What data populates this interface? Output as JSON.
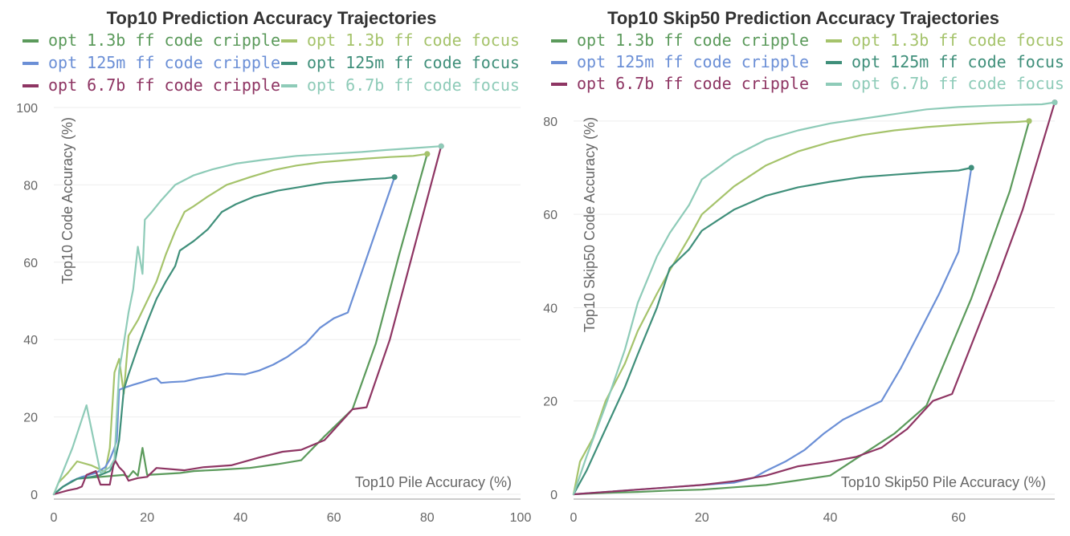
{
  "colors": {
    "opt_1_3b_cripple": "#5b9a5b",
    "opt_1_3b_focus": "#a5c36b",
    "opt_125m_cripple": "#6b8fd6",
    "opt_125m_focus": "#3f8f7a",
    "opt_6_7b_cripple": "#8e3563",
    "opt_6_7b_focus": "#8ecbb8"
  },
  "legend": [
    {
      "name": "opt 1.3b ff code cripple",
      "color_key": "opt_1_3b_cripple"
    },
    {
      "name": "opt 1.3b ff code focus",
      "color_key": "opt_1_3b_focus"
    },
    {
      "name": "opt 125m ff code cripple",
      "color_key": "opt_125m_cripple"
    },
    {
      "name": "opt 125m ff code focus",
      "color_key": "opt_125m_focus"
    },
    {
      "name": "opt 6.7b ff code cripple",
      "color_key": "opt_6_7b_cripple"
    },
    {
      "name": "opt 6.7b ff code focus",
      "color_key": "opt_6_7b_focus"
    }
  ],
  "chart_data": [
    {
      "type": "line",
      "title": "Top10 Prediction Accuracy Trajectories",
      "xlabel": "Top10 Pile Accuracy (%)",
      "ylabel": "Top10 Code Accuracy (%)",
      "xlim": [
        0,
        100
      ],
      "ylim": [
        0,
        100
      ],
      "xticks": [
        0,
        20,
        40,
        60,
        80,
        100
      ],
      "yticks": [
        0,
        20,
        40,
        60,
        80,
        100
      ],
      "grid": true,
      "series": [
        {
          "name": "opt 1.3b ff code cripple",
          "color_key": "opt_1_3b_cripple",
          "x": [
            0,
            2,
            5,
            10,
            15,
            16,
            17,
            18,
            19,
            20,
            23,
            27,
            30,
            35,
            42,
            48,
            53,
            58,
            64,
            69,
            74,
            80
          ],
          "y": [
            0,
            2,
            4,
            4.5,
            5,
            4.5,
            6,
            4.8,
            12,
            5,
            5.2,
            5.5,
            6,
            6.3,
            6.8,
            7.8,
            8.8,
            15,
            22,
            39,
            62,
            88
          ]
        },
        {
          "name": "opt 1.3b ff code focus",
          "color_key": "opt_1_3b_focus",
          "x": [
            0,
            1,
            3,
            5,
            8,
            11,
            12,
            13,
            14,
            15,
            16,
            18,
            20,
            22,
            24,
            26,
            28,
            30,
            33,
            37,
            42,
            47,
            52,
            57,
            62,
            67,
            72,
            77,
            80
          ],
          "y": [
            0,
            3,
            5.5,
            8.5,
            7.5,
            5.8,
            12,
            31.5,
            35,
            26,
            41,
            45,
            50,
            55,
            62,
            68,
            73,
            74.5,
            77,
            80,
            82,
            83.8,
            85,
            85.8,
            86.3,
            86.8,
            87.2,
            87.5,
            88
          ]
        },
        {
          "name": "opt 125m ff code cripple",
          "color_key": "opt_125m_cripple",
          "x": [
            0,
            2,
            4,
            6,
            9,
            11,
            12,
            13,
            13.5,
            14,
            15,
            17,
            19,
            21,
            22,
            23,
            25,
            28,
            31,
            34,
            37,
            41,
            44,
            47,
            50,
            54,
            57,
            60,
            63,
            73
          ],
          "y": [
            0,
            2,
            3.5,
            4.5,
            5.5,
            7,
            9,
            12,
            14,
            27,
            27.5,
            28.3,
            29,
            29.8,
            30,
            28.8,
            29,
            29.2,
            30,
            30.5,
            31.2,
            31,
            32,
            33.5,
            35.5,
            39,
            43,
            45.5,
            47,
            82
          ]
        },
        {
          "name": "opt 125m ff code focus",
          "color_key": "opt_125m_focus",
          "x": [
            0,
            2,
            5,
            8,
            10,
            12,
            13,
            14,
            15,
            16,
            18,
            20,
            22,
            24,
            26,
            27,
            30,
            33,
            36,
            39,
            43,
            48,
            53,
            58,
            63,
            68,
            71,
            73
          ],
          "y": [
            0,
            2,
            4,
            4.5,
            5,
            6,
            8,
            14,
            27,
            31,
            38,
            44.5,
            50.5,
            55,
            59,
            63,
            65.5,
            68.5,
            73,
            75,
            77,
            78.5,
            79.5,
            80.5,
            81,
            81.5,
            81.7,
            82
          ]
        },
        {
          "name": "opt 6.7b ff code cripple",
          "color_key": "opt_6_7b_cripple",
          "x": [
            0,
            3,
            5,
            6,
            7,
            9,
            10,
            12,
            13,
            14,
            15,
            16,
            18,
            20,
            22,
            28,
            32,
            38,
            44,
            49,
            53,
            58,
            64,
            67,
            72,
            83
          ],
          "y": [
            0,
            1,
            1.5,
            2,
            5,
            6,
            2.5,
            2.5,
            9,
            7,
            5.8,
            3.5,
            4.2,
            4.5,
            6.8,
            6.2,
            7,
            7.5,
            9.5,
            11,
            11.5,
            14,
            22,
            22.5,
            40,
            90
          ]
        },
        {
          "name": "opt 6.7b ff code focus",
          "color_key": "opt_6_7b_focus",
          "x": [
            0,
            4,
            7,
            10,
            12,
            13,
            14,
            15,
            16,
            17,
            18,
            19,
            19.5,
            21,
            23,
            26,
            30,
            34,
            39,
            45,
            52,
            59,
            66,
            71,
            77,
            83
          ],
          "y": [
            0,
            12,
            23,
            5.5,
            7,
            9,
            32,
            39,
            47,
            53,
            64,
            57,
            71,
            73,
            76,
            80,
            82.5,
            84,
            85.5,
            86.5,
            87.5,
            88,
            88.5,
            89,
            89.5,
            90
          ]
        }
      ]
    },
    {
      "type": "line",
      "title": "Top10 Skip50 Prediction Accuracy Trajectories",
      "xlabel": "Top10 Skip50 Pile Accuracy (%)",
      "ylabel": "Top10 Skip50 Code Accuracy (%)",
      "xlim": [
        0,
        75
      ],
      "ylim": [
        0,
        86
      ],
      "xticks": [
        0,
        20,
        40,
        60
      ],
      "yticks": [
        0,
        20,
        40,
        60,
        80
      ],
      "grid": true,
      "series": [
        {
          "name": "opt 1.3b ff code cripple",
          "color_key": "opt_1_3b_cripple",
          "x": [
            0,
            5,
            10,
            15,
            20,
            25,
            30,
            35,
            40,
            45,
            50,
            55,
            62,
            68,
            71
          ],
          "y": [
            0,
            0.3,
            0.5,
            0.8,
            1,
            1.5,
            2,
            3,
            4,
            8.5,
            13,
            19,
            42,
            65,
            80
          ]
        },
        {
          "name": "opt 1.3b ff code focus",
          "color_key": "opt_1_3b_focus",
          "x": [
            0,
            1,
            3,
            5,
            8,
            10,
            13,
            15,
            18,
            20,
            25,
            30,
            35,
            40,
            45,
            50,
            55,
            60,
            65,
            69,
            71
          ],
          "y": [
            0,
            7,
            12,
            20,
            28,
            35,
            43,
            48,
            55,
            60,
            66,
            70.5,
            73.5,
            75.5,
            77,
            78,
            78.7,
            79.2,
            79.6,
            79.8,
            80
          ]
        },
        {
          "name": "opt 125m ff code cripple",
          "color_key": "opt_125m_cripple",
          "x": [
            0,
            5,
            10,
            15,
            20,
            25,
            28,
            30,
            33,
            36,
            39,
            42,
            45,
            48,
            51,
            54,
            57,
            60,
            62
          ],
          "y": [
            0,
            0.5,
            1,
            1.5,
            2,
            2.5,
            3.5,
            5,
            7,
            9.5,
            13,
            16,
            18,
            20,
            27,
            35,
            43,
            52,
            70
          ]
        },
        {
          "name": "opt 125m ff code focus",
          "color_key": "opt_125m_focus",
          "x": [
            0,
            2,
            5,
            8,
            10,
            13,
            15,
            18,
            20,
            25,
            30,
            35,
            40,
            45,
            50,
            55,
            60,
            62
          ],
          "y": [
            0,
            5,
            14,
            23,
            30,
            40,
            48.5,
            52.5,
            56.5,
            61,
            64,
            65.8,
            67,
            68,
            68.5,
            69,
            69.4,
            70
          ]
        },
        {
          "name": "opt 6.7b ff code cripple",
          "color_key": "opt_6_7b_cripple",
          "x": [
            0,
            5,
            10,
            15,
            20,
            25,
            30,
            35,
            40,
            44,
            48,
            52,
            56,
            59,
            62,
            66,
            70,
            75
          ],
          "y": [
            0,
            0.5,
            1,
            1.5,
            2,
            2.8,
            4,
            6,
            7,
            8,
            10,
            14,
            20,
            21.5,
            32,
            46,
            61,
            84
          ]
        },
        {
          "name": "opt 6.7b ff code focus",
          "color_key": "opt_6_7b_focus",
          "x": [
            0,
            2,
            5,
            8,
            10,
            13,
            15,
            18,
            20,
            25,
            30,
            35,
            40,
            45,
            50,
            55,
            60,
            65,
            70,
            73,
            75
          ],
          "y": [
            0,
            8,
            19,
            31,
            41,
            51,
            56,
            62,
            67.5,
            72.5,
            76,
            78,
            79.5,
            80.5,
            81.5,
            82.5,
            83,
            83.3,
            83.5,
            83.6,
            84
          ]
        }
      ]
    }
  ]
}
